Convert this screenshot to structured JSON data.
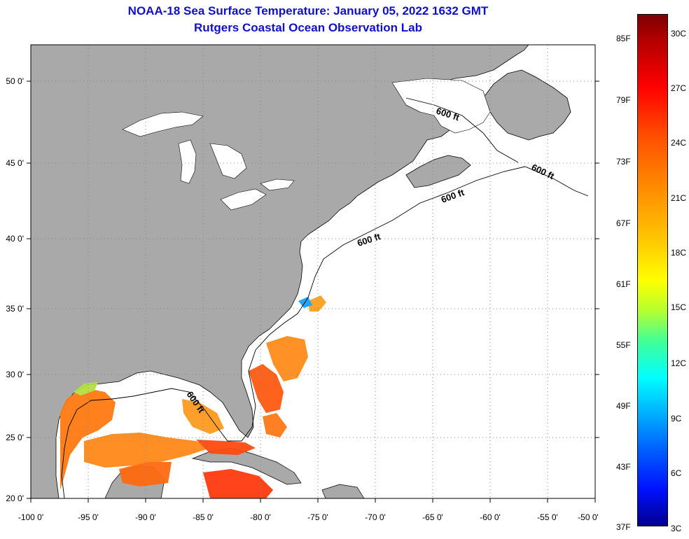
{
  "title": {
    "line1": "NOAA-18 Sea Surface Temperature:  January 05, 2022 1632 GMT",
    "line2": "Rutgers Coastal Ocean Observation Lab"
  },
  "map": {
    "lon_labels": [
      "-100 0'",
      "-95 0'",
      "-90 0'",
      "-85 0'",
      "-80 0'",
      "-75 0'",
      "-70 0'",
      "-65 0'",
      "-60 0'",
      "-55 0'",
      "-50 0'"
    ],
    "lat_labels": [
      "50 0'",
      "45 0'",
      "40 0'",
      "35 0'",
      "30 0'",
      "25 0'",
      "20 0'"
    ],
    "contour_label": "600 ft",
    "colors": {
      "land": "#a9a9a9",
      "ocean_no_data": "#ffffff",
      "grid": "#888888"
    }
  },
  "colorbar": {
    "fahrenheit_labels": [
      "85F",
      "79F",
      "73F",
      "67F",
      "61F",
      "55F",
      "49F",
      "43F",
      "37F"
    ],
    "celsius_labels": [
      "30C",
      "27C",
      "24C",
      "21C",
      "18C",
      "15C",
      "12C",
      "9C",
      "6C",
      "3C"
    ]
  }
}
